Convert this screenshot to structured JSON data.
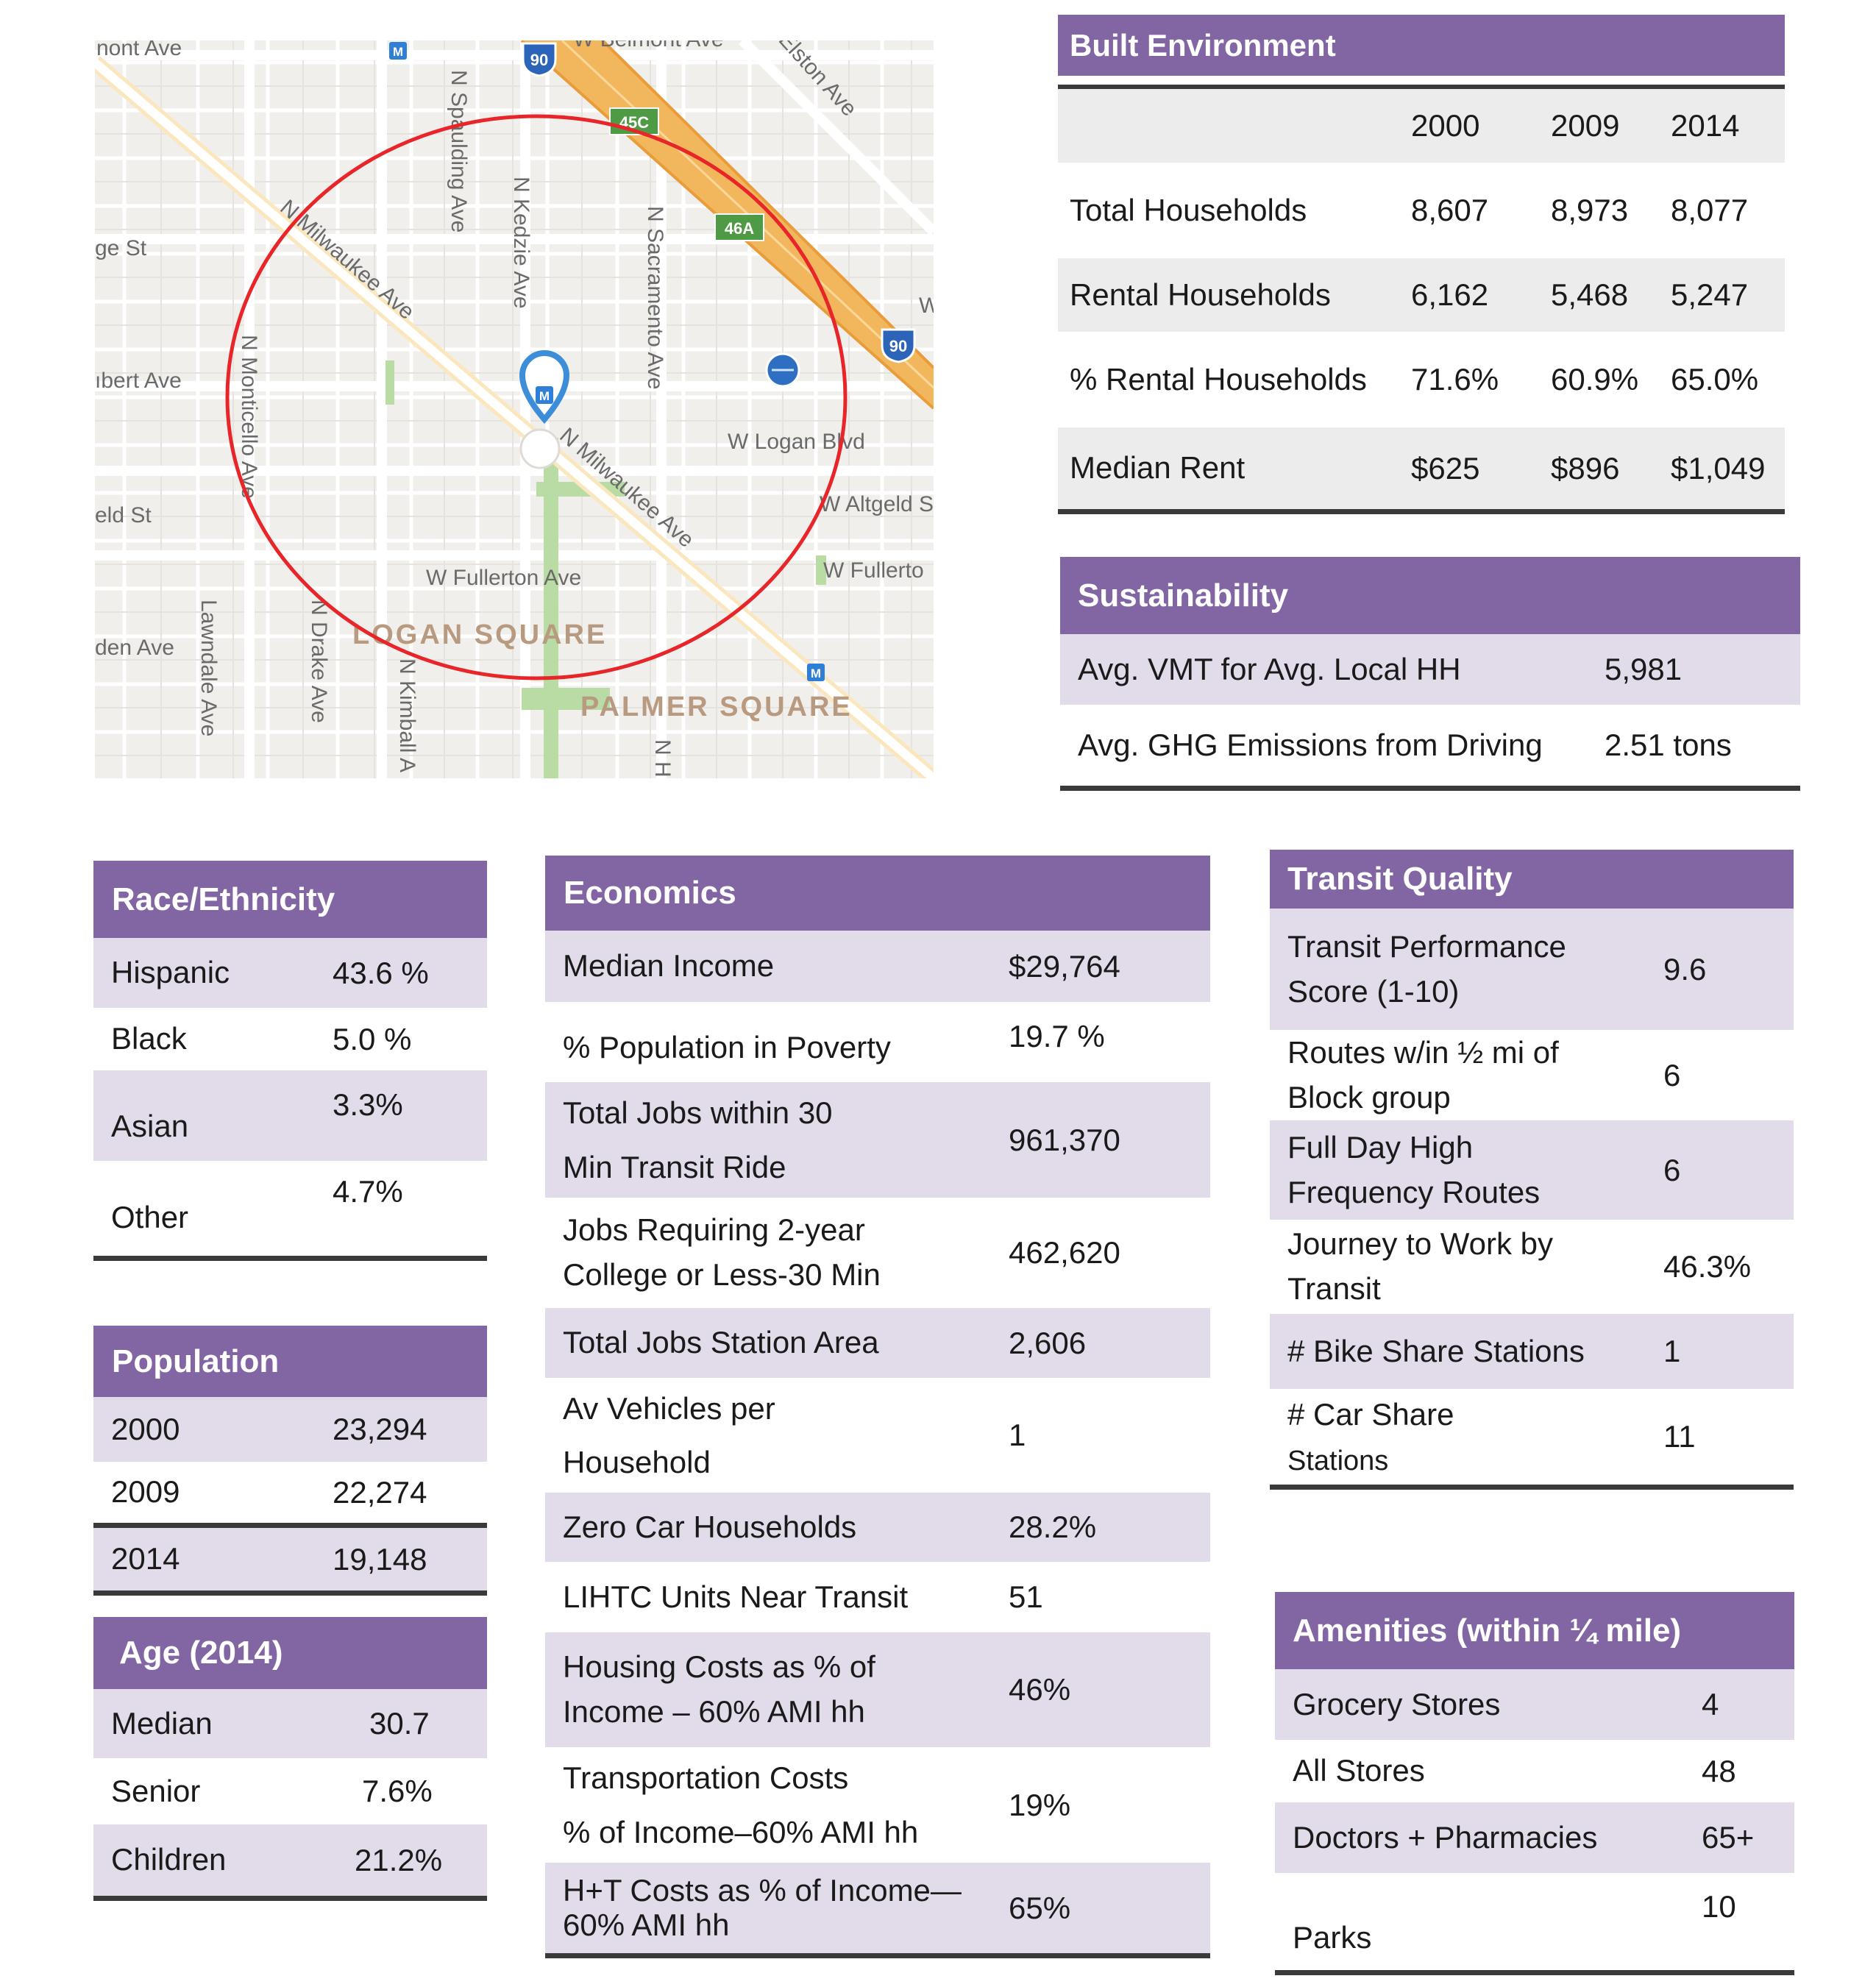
{
  "map": {
    "streets": {
      "belmont_left": "nont Ave",
      "belmont_top": "W Belmont Ave",
      "george": "ge St",
      "schubert": "ıbert Ave",
      "wrightwood": "eld St",
      "dickens": "den Ave",
      "spaulding": "N Spaulding Ave",
      "kedzie": "N Kedzie Ave",
      "sacramento": "N Sacramento Ave",
      "elston": "Elston Ave",
      "milwaukee_upper": "N Milwaukee Ave",
      "milwaukee_lower": "N Milwaukee Ave",
      "monticello": "N Monticello Ave",
      "lawndale": "Lawndale Ave",
      "drake": "N Drake Ave",
      "kimball": "N Kimball A",
      "logan_blvd": "W Logan Blvd",
      "altgeld": "W Altgeld S",
      "fullerton": "W Fullerton Ave",
      "fullerton_right": "W Fullerto",
      "nh": "N H",
      "w_edge": "W"
    },
    "neighborhoods": {
      "logan_square": "LOGAN SQUARE",
      "palmer_square": "PALMER SQUARE"
    },
    "shields": {
      "i90_top": "90",
      "i90_right": "90",
      "exit_45c": "45C",
      "exit_46a": "46A",
      "metro": "M"
    },
    "colors": {
      "radius_circle": "#e8262a",
      "pin": "#3d8ed8",
      "highway": "#f2b75d",
      "park": "#b8dca3"
    }
  },
  "built_environment": {
    "title": "Built Environment",
    "years": [
      "2000",
      "2009",
      "2014"
    ],
    "rows": [
      {
        "label": "Total Households",
        "values": [
          "8,607",
          "8,973",
          "8,077"
        ]
      },
      {
        "label": "Rental Households",
        "values": [
          "6,162",
          "5,468",
          "5,247"
        ]
      },
      {
        "label": "% Rental Households",
        "values": [
          "71.6%",
          "60.9%",
          "65.0%"
        ]
      },
      {
        "label": "Median Rent",
        "values": [
          "$625",
          "$896",
          "$1,049"
        ]
      }
    ]
  },
  "sustainability": {
    "title": "Sustainability",
    "rows": [
      {
        "label": "Avg. VMT  for Avg. Local HH",
        "value": "5,981"
      },
      {
        "label": "Avg. GHG Emissions from Driving",
        "value": "2.51 tons"
      }
    ]
  },
  "race": {
    "title": "Race/Ethnicity",
    "rows": [
      {
        "label": "Hispanic",
        "value": "43.6 %"
      },
      {
        "label": "Black",
        "value": "5.0 %"
      },
      {
        "label": "Asian",
        "value": "3.3%"
      },
      {
        "label": "Other",
        "value": "4.7%"
      }
    ]
  },
  "population": {
    "title": "Population",
    "rows": [
      {
        "label": "2000",
        "value": "23,294"
      },
      {
        "label": "2009",
        "value": "22,274"
      },
      {
        "label": "2014",
        "value": "19,148"
      }
    ]
  },
  "age": {
    "title": "Age (2014)",
    "rows": [
      {
        "label": "Median",
        "value": "30.7"
      },
      {
        "label": "Senior",
        "value": "7.6%"
      },
      {
        "label": "Children",
        "value": "21.2%"
      }
    ]
  },
  "economics": {
    "title": "Economics",
    "rows": [
      {
        "label": "Median Income",
        "value": "$29,764"
      },
      {
        "label": "% Population in Poverty",
        "value": "19.7 %"
      },
      {
        "label": "Total Jobs within 30",
        "label2": "Min Transit Ride",
        "value": "961,370"
      },
      {
        "label": "Jobs Requiring 2-year",
        "label2": "College or Less-30 Min",
        "value": "462,620"
      },
      {
        "label": "Total Jobs Station Area",
        "value": "2,606"
      },
      {
        "label": "Av Vehicles per",
        "label2": "Household",
        "value": "1"
      },
      {
        "label": "Zero Car Households",
        "value": "28.2%"
      },
      {
        "label": "LIHTC Units Near Transit",
        "value": "51"
      },
      {
        "label": "Housing Costs as % of",
        "label2": "Income – 60% AMI hh",
        "value": "46%"
      },
      {
        "label": "Transportation Costs",
        "label2": "% of Income–60% AMI hh",
        "value": "19%"
      },
      {
        "label": "H+T Costs as % of Income—",
        "label2": "60% AMI hh",
        "value": "65%"
      }
    ]
  },
  "transit": {
    "title": "Transit Quality",
    "rows": [
      {
        "label": "Transit Performance",
        "label2": "Score (1-10)",
        "value": "9.6"
      },
      {
        "label": "Routes w/in ½ mi of",
        "label2": "Block group",
        "value": "6"
      },
      {
        "label": "Full Day High",
        "label2": "Frequency Routes",
        "value": "6"
      },
      {
        "label": "Journey to Work by",
        "label2": "Transit",
        "value": "46.3%"
      },
      {
        "label": "# Bike Share Stations",
        "value": "1"
      },
      {
        "label": "# Car Share",
        "label2": "Stations",
        "value": "11"
      }
    ]
  },
  "amenities": {
    "title": "Amenities (within ¼ mile)",
    "rows": [
      {
        "label": "Grocery Stores",
        "value": "4"
      },
      {
        "label": "All Stores",
        "value": "48"
      },
      {
        "label": "Doctors + Pharmacies",
        "value": "65+"
      },
      {
        "label": "Parks",
        "value": "10"
      }
    ]
  }
}
